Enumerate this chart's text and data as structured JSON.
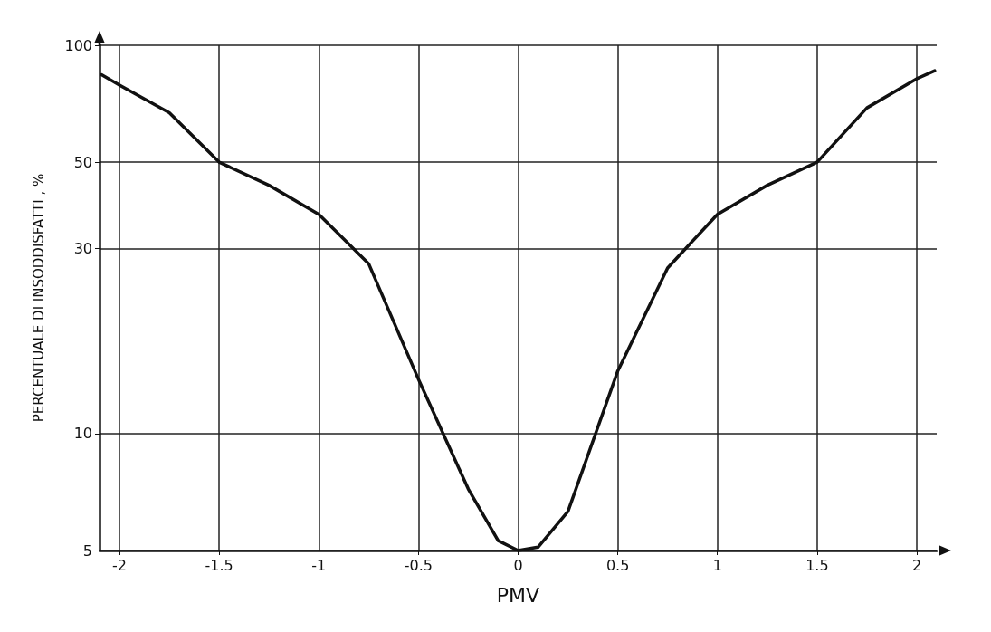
{
  "chart_data": {
    "type": "line",
    "xlabel": "PMV",
    "ylabel": "PERCENTUALE DI INSODDISFATTI , %",
    "x": [
      -2.09,
      -2,
      -1.75,
      -1.5,
      -1.25,
      -1,
      -0.75,
      -0.5,
      -0.25,
      -0.1,
      0,
      0.1,
      0.25,
      0.5,
      0.75,
      1,
      1.25,
      1.5,
      1.75,
      2,
      2.09
    ],
    "series": [
      {
        "color": "#111111",
        "values": [
          84,
          79,
          67,
          50,
          43.6,
          36.7,
          27.4,
          13.8,
          7.2,
          5.3,
          5,
          5.1,
          6.3,
          14.5,
          26.7,
          36.7,
          43.6,
          50,
          69,
          82,
          86
        ]
      }
    ],
    "xlim": [
      -2.1,
      2.1
    ],
    "xticks": [
      -2,
      -1.5,
      -1,
      -0.5,
      0,
      0.5,
      1,
      1.5,
      2
    ],
    "ylim": [
      5,
      100
    ],
    "yticks": [
      5,
      10,
      30,
      50,
      100
    ],
    "log": true,
    "grid": true,
    "marker": "none",
    "line_style": "solid"
  }
}
